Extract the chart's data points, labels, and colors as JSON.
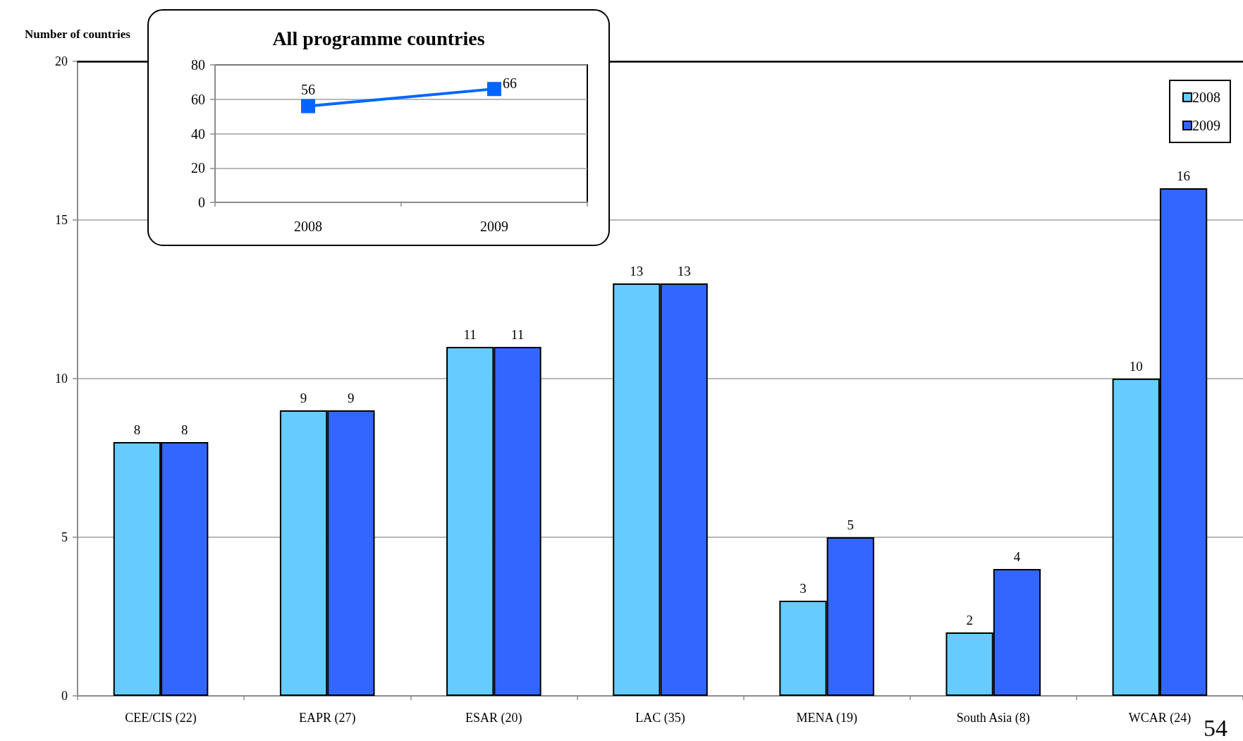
{
  "chart_data": [
    {
      "type": "bar",
      "ylabel": "Number of countries",
      "categories": [
        "CEE/CIS (22)",
        "EAPR (27)",
        "ESAR (20)",
        "LAC (35)",
        "MENA (19)",
        "South Asia (8)",
        "WCAR (24)"
      ],
      "series": [
        {
          "name": "2008",
          "color": "#66ccff",
          "values": [
            8,
            9,
            11,
            13,
            3,
            2,
            10
          ]
        },
        {
          "name": "2009",
          "color": "#3366ff",
          "values": [
            8,
            9,
            11,
            13,
            5,
            4,
            16
          ]
        }
      ],
      "ylim": [
        0,
        20
      ],
      "yticks": [
        0,
        5,
        10,
        15,
        20
      ],
      "grid": "y",
      "legend": "top right",
      "data_labels": true,
      "annotations": [
        "54"
      ]
    },
    {
      "type": "line",
      "title": "All programme countries",
      "categories": [
        "2008",
        "2009"
      ],
      "values": [
        56,
        66
      ],
      "color": "#0066ff",
      "ylim": [
        0,
        80
      ],
      "yticks": [
        0,
        20,
        40,
        60,
        80
      ],
      "grid": "y",
      "marker": "square",
      "line_style": "solid",
      "data_labels": true
    }
  ]
}
